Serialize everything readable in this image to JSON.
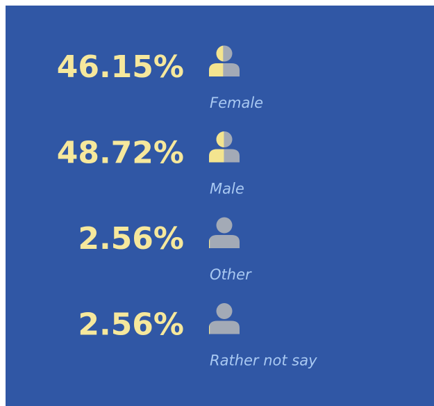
{
  "chart_data": {
    "type": "pictogram",
    "categories": [
      "Female",
      "Male",
      "Other",
      "Rather not say"
    ],
    "values": [
      46.15,
      48.72,
      2.56,
      2.56
    ],
    "value_labels": [
      "46.15%",
      "48.72%",
      "2.56%",
      "2.56%"
    ],
    "xlim": [
      0,
      100
    ],
    "color": "#f3e48f",
    "empty_color": "#a3aab6",
    "background": "#3057a5"
  }
}
